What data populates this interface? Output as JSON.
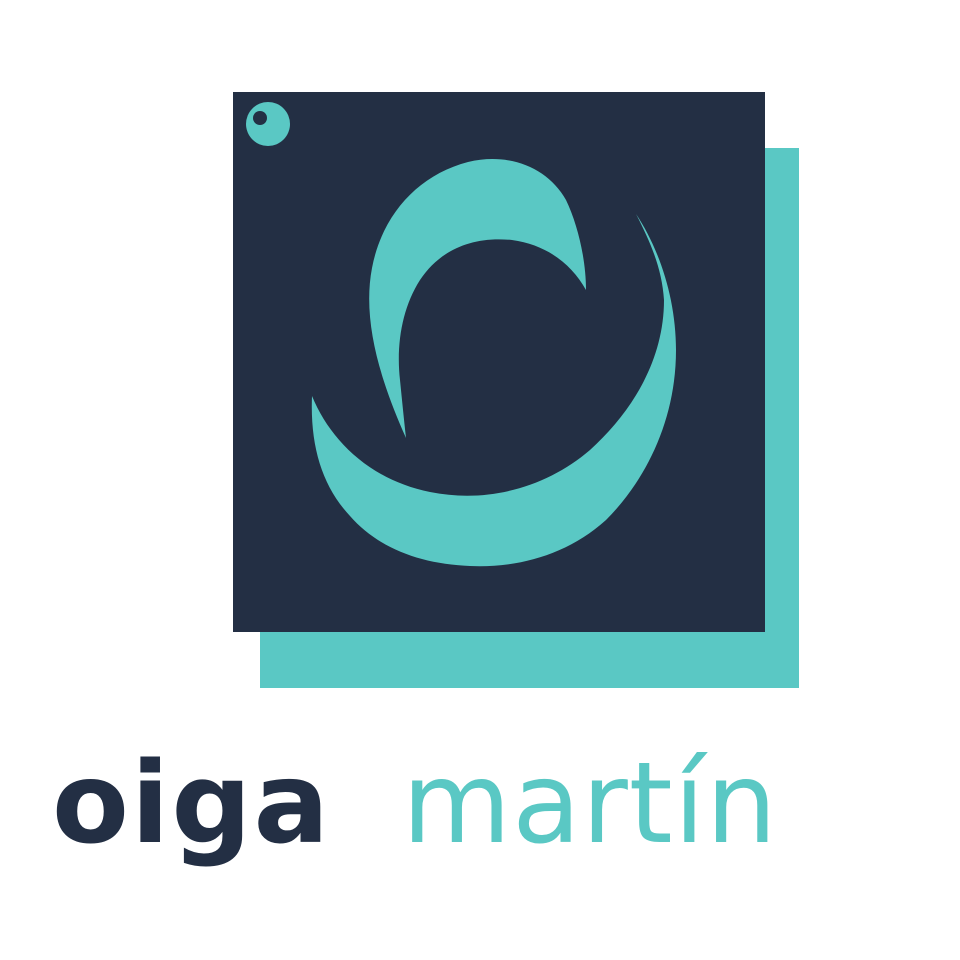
{
  "brand": {
    "first_name": "oiga",
    "last_name": "martín",
    "colors": {
      "navy": "#232f44",
      "teal": "#5ac8c4",
      "background": "#ffffff"
    }
  }
}
